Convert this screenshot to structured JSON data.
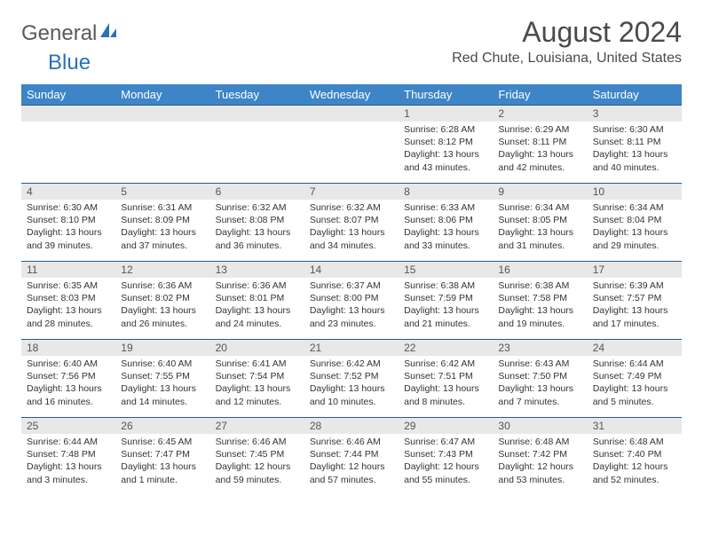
{
  "logo": {
    "general": "General",
    "blue": "Blue"
  },
  "header": {
    "month_title": "August 2024",
    "location": "Red Chute, Louisiana, United States"
  },
  "colors": {
    "header_bg": "#3d85c6",
    "header_text": "#ffffff",
    "daynum_bg": "#e8e8e8",
    "border": "#2a5a8a",
    "logo_blue": "#2a71b8",
    "logo_gray": "#5a5a5a",
    "body_text": "#333333"
  },
  "day_names": [
    "Sunday",
    "Monday",
    "Tuesday",
    "Wednesday",
    "Thursday",
    "Friday",
    "Saturday"
  ],
  "weeks": [
    [
      null,
      null,
      null,
      null,
      {
        "n": "1",
        "sr": "6:28 AM",
        "ss": "8:12 PM",
        "dl": "13 hours and 43 minutes."
      },
      {
        "n": "2",
        "sr": "6:29 AM",
        "ss": "8:11 PM",
        "dl": "13 hours and 42 minutes."
      },
      {
        "n": "3",
        "sr": "6:30 AM",
        "ss": "8:11 PM",
        "dl": "13 hours and 40 minutes."
      }
    ],
    [
      {
        "n": "4",
        "sr": "6:30 AM",
        "ss": "8:10 PM",
        "dl": "13 hours and 39 minutes."
      },
      {
        "n": "5",
        "sr": "6:31 AM",
        "ss": "8:09 PM",
        "dl": "13 hours and 37 minutes."
      },
      {
        "n": "6",
        "sr": "6:32 AM",
        "ss": "8:08 PM",
        "dl": "13 hours and 36 minutes."
      },
      {
        "n": "7",
        "sr": "6:32 AM",
        "ss": "8:07 PM",
        "dl": "13 hours and 34 minutes."
      },
      {
        "n": "8",
        "sr": "6:33 AM",
        "ss": "8:06 PM",
        "dl": "13 hours and 33 minutes."
      },
      {
        "n": "9",
        "sr": "6:34 AM",
        "ss": "8:05 PM",
        "dl": "13 hours and 31 minutes."
      },
      {
        "n": "10",
        "sr": "6:34 AM",
        "ss": "8:04 PM",
        "dl": "13 hours and 29 minutes."
      }
    ],
    [
      {
        "n": "11",
        "sr": "6:35 AM",
        "ss": "8:03 PM",
        "dl": "13 hours and 28 minutes."
      },
      {
        "n": "12",
        "sr": "6:36 AM",
        "ss": "8:02 PM",
        "dl": "13 hours and 26 minutes."
      },
      {
        "n": "13",
        "sr": "6:36 AM",
        "ss": "8:01 PM",
        "dl": "13 hours and 24 minutes."
      },
      {
        "n": "14",
        "sr": "6:37 AM",
        "ss": "8:00 PM",
        "dl": "13 hours and 23 minutes."
      },
      {
        "n": "15",
        "sr": "6:38 AM",
        "ss": "7:59 PM",
        "dl": "13 hours and 21 minutes."
      },
      {
        "n": "16",
        "sr": "6:38 AM",
        "ss": "7:58 PM",
        "dl": "13 hours and 19 minutes."
      },
      {
        "n": "17",
        "sr": "6:39 AM",
        "ss": "7:57 PM",
        "dl": "13 hours and 17 minutes."
      }
    ],
    [
      {
        "n": "18",
        "sr": "6:40 AM",
        "ss": "7:56 PM",
        "dl": "13 hours and 16 minutes."
      },
      {
        "n": "19",
        "sr": "6:40 AM",
        "ss": "7:55 PM",
        "dl": "13 hours and 14 minutes."
      },
      {
        "n": "20",
        "sr": "6:41 AM",
        "ss": "7:54 PM",
        "dl": "13 hours and 12 minutes."
      },
      {
        "n": "21",
        "sr": "6:42 AM",
        "ss": "7:52 PM",
        "dl": "13 hours and 10 minutes."
      },
      {
        "n": "22",
        "sr": "6:42 AM",
        "ss": "7:51 PM",
        "dl": "13 hours and 8 minutes."
      },
      {
        "n": "23",
        "sr": "6:43 AM",
        "ss": "7:50 PM",
        "dl": "13 hours and 7 minutes."
      },
      {
        "n": "24",
        "sr": "6:44 AM",
        "ss": "7:49 PM",
        "dl": "13 hours and 5 minutes."
      }
    ],
    [
      {
        "n": "25",
        "sr": "6:44 AM",
        "ss": "7:48 PM",
        "dl": "13 hours and 3 minutes."
      },
      {
        "n": "26",
        "sr": "6:45 AM",
        "ss": "7:47 PM",
        "dl": "13 hours and 1 minute."
      },
      {
        "n": "27",
        "sr": "6:46 AM",
        "ss": "7:45 PM",
        "dl": "12 hours and 59 minutes."
      },
      {
        "n": "28",
        "sr": "6:46 AM",
        "ss": "7:44 PM",
        "dl": "12 hours and 57 minutes."
      },
      {
        "n": "29",
        "sr": "6:47 AM",
        "ss": "7:43 PM",
        "dl": "12 hours and 55 minutes."
      },
      {
        "n": "30",
        "sr": "6:48 AM",
        "ss": "7:42 PM",
        "dl": "12 hours and 53 minutes."
      },
      {
        "n": "31",
        "sr": "6:48 AM",
        "ss": "7:40 PM",
        "dl": "12 hours and 52 minutes."
      }
    ]
  ],
  "labels": {
    "sunrise": "Sunrise:",
    "sunset": "Sunset:",
    "daylight": "Daylight:"
  }
}
